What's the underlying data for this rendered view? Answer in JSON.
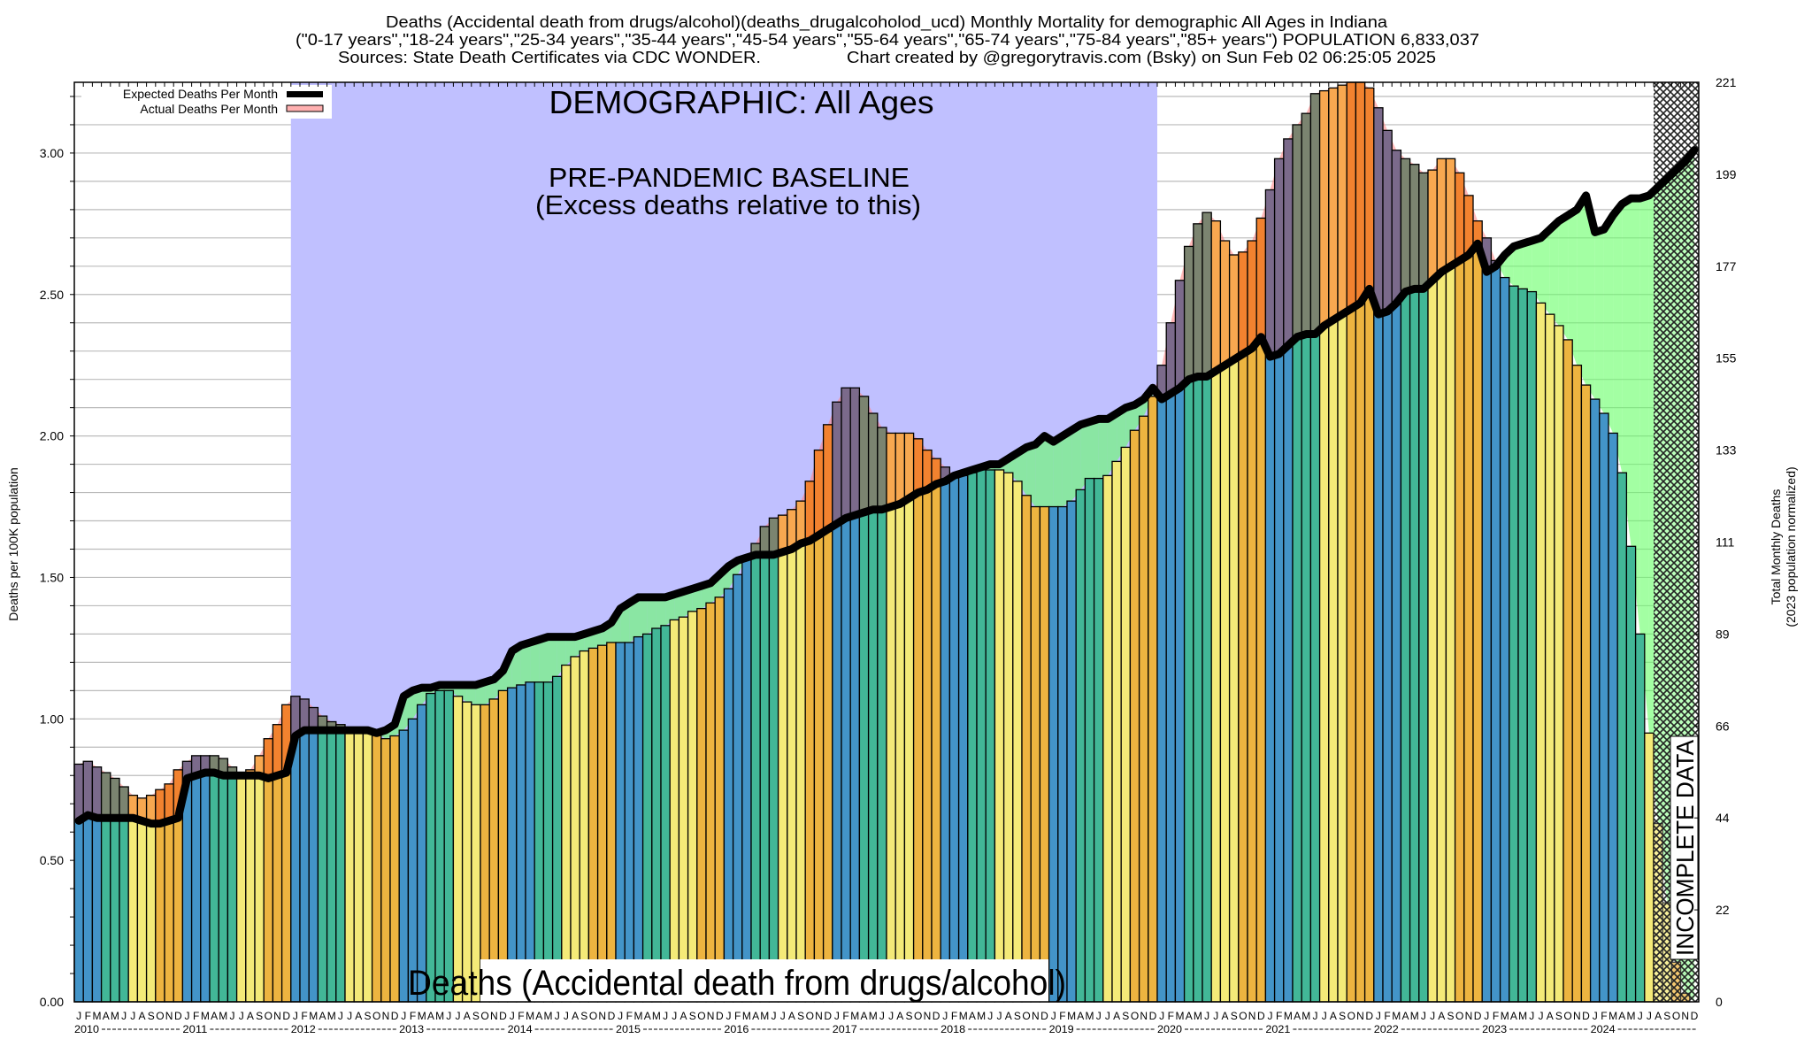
{
  "header": {
    "title_line1": "Deaths (Accidental death from drugs/alcohol)(deaths_drugalcoholod_ucd) Monthly Mortality for demographic All Ages in Indiana",
    "title_line2": "(\"0-17 years\",\"18-24 years\",\"25-34 years\",\"35-44 years\",\"45-54 years\",\"55-64 years\",\"65-74 years\",\"75-84 years\",\"85+ years\") POPULATION 6,833,037",
    "sources": "Sources: State Death Certificates via CDC WONDER.",
    "credit": "Chart created by @gregorytravis.com (Bsky) on Sun Feb 02 06:25:05 2025"
  },
  "annotations": {
    "demographic": "DEMOGRAPHIC: All Ages",
    "baseline_title": "PRE-PANDEMIC BASELINE",
    "baseline_sub": "(Excess deaths relative to this)",
    "bottom_label": "Deaths (Accidental death from drugs/alcohol)",
    "incomplete": "INCOMPLETE DATA"
  },
  "legend": {
    "expected": "Expected Deaths Per Month",
    "actual": "Actual Deaths Per Month"
  },
  "colors": {
    "quarter": [
      "#4394c8",
      "#42b797",
      "#f4ea78",
      "#edb440"
    ],
    "quarter_excess": [
      "#7b6a8b",
      "#7b8470",
      "#f8a850",
      "#f2822f"
    ],
    "baseline_bg": "#c0c0ff",
    "deficit_fill": "#66ff66",
    "excess_fill": "#ff8080",
    "expected_line": "#000000",
    "legend_actual": "#ffb0b0"
  },
  "chart_data": {
    "type": "bar",
    "ylabel": "Deaths per 100K population",
    "ylabel_right": "Total Monthly Deaths",
    "ylabel_right_sub": "(2023 population normalized)",
    "ylim": [
      0,
      3.25
    ],
    "yticks": [
      "0.00",
      "0.50",
      "1.00",
      "1.50",
      "2.00",
      "2.50",
      "3.00"
    ],
    "yticks_right": [
      "0",
      "22",
      "44",
      "66",
      "89",
      "111",
      "133",
      "155",
      "177",
      "199",
      "221"
    ],
    "month_letters": [
      "J",
      "F",
      "M",
      "A",
      "M",
      "J",
      "J",
      "A",
      "S",
      "O",
      "N",
      "D"
    ],
    "years": [
      "2010",
      "2011",
      "2012",
      "2013",
      "2014",
      "2015",
      "2016",
      "2017",
      "2018",
      "2019",
      "2020",
      "2021",
      "2022",
      "2023",
      "2024"
    ],
    "grid": true,
    "legend_position": "top-left",
    "baseline_period": [
      "2012-01",
      "2019-12"
    ],
    "incomplete_from": "2024-08",
    "series": [
      {
        "name": "Actual Deaths Per Month",
        "values": [
          0.84,
          0.85,
          0.83,
          0.81,
          0.79,
          0.76,
          0.73,
          0.72,
          0.73,
          0.75,
          0.77,
          0.82,
          0.85,
          0.87,
          0.87,
          0.87,
          0.86,
          0.83,
          0.79,
          0.82,
          0.87,
          0.93,
          0.98,
          1.05,
          1.08,
          1.07,
          1.04,
          1.01,
          0.99,
          0.98,
          0.95,
          0.95,
          0.95,
          0.95,
          0.93,
          0.94,
          0.96,
          1.0,
          1.05,
          1.09,
          1.1,
          1.1,
          1.08,
          1.06,
          1.05,
          1.05,
          1.07,
          1.1,
          1.11,
          1.12,
          1.13,
          1.13,
          1.13,
          1.15,
          1.19,
          1.22,
          1.24,
          1.25,
          1.26,
          1.27,
          1.27,
          1.27,
          1.29,
          1.3,
          1.32,
          1.33,
          1.35,
          1.36,
          1.38,
          1.39,
          1.41,
          1.43,
          1.46,
          1.51,
          1.57,
          1.62,
          1.68,
          1.71,
          1.72,
          1.74,
          1.77,
          1.84,
          1.95,
          2.04,
          2.12,
          2.17,
          2.17,
          2.14,
          2.08,
          2.03,
          2.01,
          2.01,
          2.01,
          1.99,
          1.95,
          1.92,
          1.89,
          1.86,
          1.86,
          1.87,
          1.88,
          1.88,
          1.88,
          1.87,
          1.84,
          1.79,
          1.75,
          1.75,
          1.75,
          1.75,
          1.77,
          1.81,
          1.85,
          1.85,
          1.86,
          1.91,
          1.96,
          2.02,
          2.07,
          2.14,
          2.25,
          2.4,
          2.55,
          2.67,
          2.75,
          2.79,
          2.76,
          2.69,
          2.64,
          2.65,
          2.69,
          2.77,
          2.87,
          2.98,
          3.05,
          3.1,
          3.14,
          3.21,
          3.22,
          3.23,
          3.24,
          3.25,
          3.25,
          3.23,
          3.16,
          3.08,
          3.01,
          2.98,
          2.96,
          2.93,
          2.94,
          2.98,
          2.98,
          2.93,
          2.85,
          2.76,
          2.7,
          2.62,
          2.56,
          2.53,
          2.52,
          2.51,
          2.47,
          2.43,
          2.39,
          2.34,
          2.25,
          2.18,
          2.13,
          2.08,
          2.01,
          1.87,
          1.61,
          1.3,
          0.95,
          0.63,
          0.35,
          0.14,
          0.03,
          0.0
        ]
      },
      {
        "name": "Expected Deaths Per Month",
        "values": [
          0.64,
          0.66,
          0.65,
          0.65,
          0.65,
          0.65,
          0.65,
          0.64,
          0.63,
          0.63,
          0.64,
          0.65,
          0.79,
          0.8,
          0.81,
          0.81,
          0.8,
          0.8,
          0.8,
          0.8,
          0.8,
          0.79,
          0.8,
          0.81,
          0.94,
          0.96,
          0.96,
          0.96,
          0.96,
          0.96,
          0.96,
          0.96,
          0.96,
          0.95,
          0.96,
          0.98,
          1.08,
          1.1,
          1.11,
          1.11,
          1.12,
          1.12,
          1.12,
          1.12,
          1.12,
          1.13,
          1.14,
          1.17,
          1.24,
          1.26,
          1.27,
          1.28,
          1.29,
          1.29,
          1.29,
          1.29,
          1.3,
          1.31,
          1.32,
          1.34,
          1.39,
          1.41,
          1.43,
          1.43,
          1.43,
          1.43,
          1.44,
          1.45,
          1.46,
          1.47,
          1.48,
          1.51,
          1.54,
          1.56,
          1.57,
          1.58,
          1.58,
          1.58,
          1.59,
          1.6,
          1.62,
          1.63,
          1.65,
          1.67,
          1.69,
          1.71,
          1.72,
          1.73,
          1.74,
          1.74,
          1.75,
          1.76,
          1.78,
          1.8,
          1.81,
          1.83,
          1.84,
          1.86,
          1.87,
          1.88,
          1.89,
          1.9,
          1.9,
          1.92,
          1.94,
          1.96,
          1.97,
          2.0,
          1.98,
          2.0,
          2.02,
          2.04,
          2.05,
          2.06,
          2.06,
          2.08,
          2.1,
          2.11,
          2.13,
          2.17,
          2.13,
          2.15,
          2.17,
          2.2,
          2.21,
          2.21,
          2.23,
          2.25,
          2.27,
          2.29,
          2.31,
          2.35,
          2.28,
          2.29,
          2.32,
          2.35,
          2.36,
          2.36,
          2.39,
          2.41,
          2.43,
          2.45,
          2.47,
          2.52,
          2.43,
          2.44,
          2.47,
          2.51,
          2.52,
          2.52,
          2.55,
          2.58,
          2.6,
          2.62,
          2.64,
          2.68,
          2.58,
          2.6,
          2.64,
          2.67,
          2.68,
          2.69,
          2.7,
          2.73,
          2.76,
          2.78,
          2.8,
          2.85,
          2.72,
          2.73,
          2.78,
          2.82,
          2.84,
          2.84,
          2.85,
          2.88,
          2.91,
          2.94,
          2.97,
          3.01
        ]
      }
    ]
  }
}
